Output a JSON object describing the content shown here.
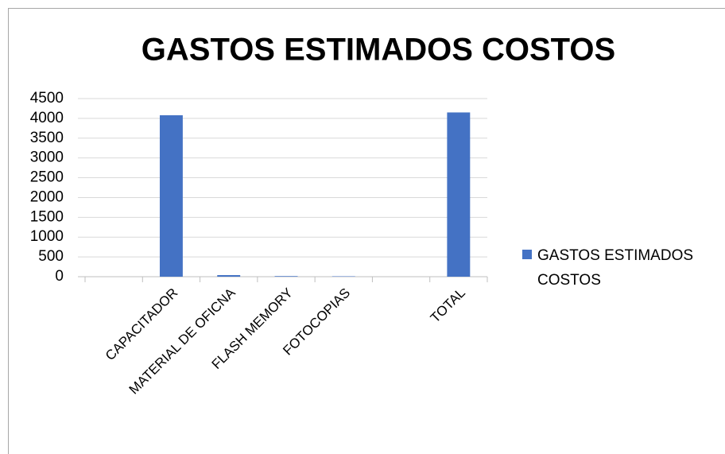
{
  "chart_data": {
    "type": "bar",
    "title": "GASTOS ESTIMADOS COSTOS",
    "categories": [
      null,
      "CAPACITADOR",
      "MATERIAL DE OFICNA",
      "FLASH MEMORY",
      "FOTOCOPIAS",
      null,
      "TOTAL"
    ],
    "series": [
      {
        "name": "GASTOS ESTIMADOS COSTOS",
        "color": "#4472c4",
        "values": [
          null,
          4080,
          40,
          15,
          10,
          null,
          4150
        ]
      }
    ],
    "ylim": [
      0,
      4500
    ],
    "yticks": [
      0,
      500,
      1000,
      1500,
      2000,
      2500,
      3000,
      3500,
      4000,
      4500
    ],
    "grid": true,
    "legend": "right"
  }
}
